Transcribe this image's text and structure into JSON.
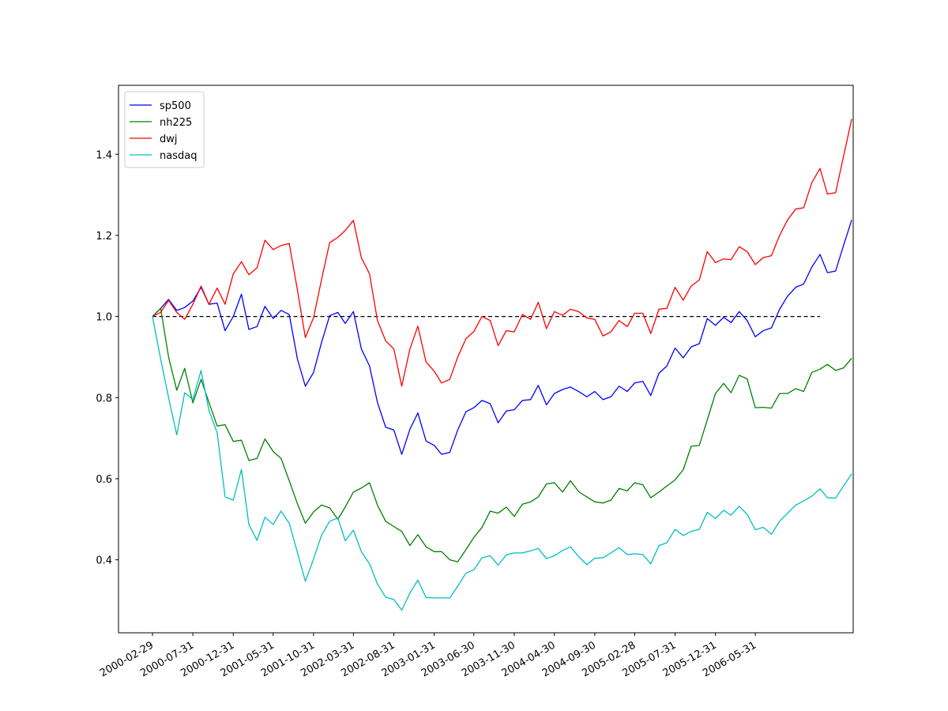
{
  "chart_data": {
    "type": "line",
    "title": "",
    "xlabel": "",
    "ylabel": "",
    "x_ticks": [
      "2000-02-29",
      "2000-07-31",
      "2000-12-31",
      "2001-05-31",
      "2001-10-31",
      "2002-03-31",
      "2002-08-31",
      "2003-01-31",
      "2003-06-30",
      "2003-11-30",
      "2004-04-30",
      "2004-09-30",
      "2005-02-28",
      "2005-07-31",
      "2005-12-31",
      "2006-05-31"
    ],
    "x_start": "2000-02-29",
    "x_end": "2007-01-31",
    "x_frequency": "monthly",
    "ylim": [
      0.22,
      1.57
    ],
    "y_ticks": [
      0.4,
      0.6,
      0.8,
      1.0,
      1.2,
      1.4
    ],
    "y_tick_labels": [
      "0.4",
      "0.6",
      "0.8",
      "1.0",
      "1.2",
      "1.4"
    ],
    "grid": false,
    "legend_position": "top-left",
    "reference_line": {
      "y": 1.0,
      "style": "dashed",
      "color": "#000000"
    },
    "series": [
      {
        "name": "sp500",
        "color": "#0000ff",
        "values": [
          1.0,
          1.02,
          1.042,
          1.015,
          1.022,
          1.038,
          1.072,
          1.03,
          1.033,
          0.965,
          1.0,
          1.055,
          0.968,
          0.975,
          1.025,
          0.995,
          1.015,
          1.005,
          0.895,
          0.828,
          0.862,
          0.935,
          1.002,
          1.01,
          0.983,
          1.012,
          0.92,
          0.878,
          0.788,
          0.727,
          0.72,
          0.66,
          0.722,
          0.762,
          0.693,
          0.682,
          0.66,
          0.665,
          0.72,
          0.765,
          0.775,
          0.793,
          0.785,
          0.738,
          0.767,
          0.77,
          0.793,
          0.795,
          0.83,
          0.782,
          0.81,
          0.82,
          0.826,
          0.815,
          0.802,
          0.815,
          0.795,
          0.802,
          0.828,
          0.815,
          0.836,
          0.84,
          0.805,
          0.86,
          0.878,
          0.922,
          0.898,
          0.925,
          0.933,
          0.995,
          0.978,
          0.998,
          0.985,
          1.012,
          0.99,
          0.95,
          0.965,
          0.972,
          1.018,
          1.05,
          1.072,
          1.08,
          1.122,
          1.153,
          1.108,
          1.112,
          1.175,
          1.238
        ]
      },
      {
        "name": "nh225",
        "color": "#008000",
        "values": [
          1.0,
          1.02,
          0.9,
          0.818,
          0.872,
          0.787,
          0.845,
          0.788,
          0.73,
          0.733,
          0.692,
          0.695,
          0.645,
          0.65,
          0.698,
          0.667,
          0.65,
          0.595,
          0.538,
          0.49,
          0.518,
          0.535,
          0.528,
          0.5,
          0.53,
          0.567,
          0.577,
          0.59,
          0.535,
          0.495,
          0.482,
          0.47,
          0.435,
          0.462,
          0.432,
          0.42,
          0.42,
          0.4,
          0.395,
          0.425,
          0.455,
          0.48,
          0.52,
          0.515,
          0.53,
          0.507,
          0.537,
          0.543,
          0.555,
          0.587,
          0.59,
          0.567,
          0.595,
          0.568,
          0.555,
          0.543,
          0.54,
          0.547,
          0.576,
          0.57,
          0.59,
          0.585,
          0.553,
          0.567,
          0.582,
          0.597,
          0.622,
          0.68,
          0.682,
          0.745,
          0.81,
          0.835,
          0.812,
          0.855,
          0.846,
          0.775,
          0.776,
          0.774,
          0.81,
          0.81,
          0.822,
          0.815,
          0.862,
          0.87,
          0.882,
          0.867,
          0.873,
          0.897
        ]
      },
      {
        "name": "dwj",
        "color": "#ff0000",
        "values": [
          1.0,
          1.01,
          1.04,
          1.01,
          0.993,
          1.03,
          1.075,
          1.03,
          1.07,
          1.03,
          1.105,
          1.135,
          1.103,
          1.12,
          1.188,
          1.165,
          1.175,
          1.18,
          1.065,
          0.948,
          0.997,
          1.09,
          1.182,
          1.195,
          1.212,
          1.237,
          1.145,
          1.105,
          0.99,
          0.94,
          0.92,
          0.828,
          0.92,
          0.976,
          0.888,
          0.865,
          0.836,
          0.845,
          0.9,
          0.945,
          0.963,
          1.0,
          0.99,
          0.928,
          0.965,
          0.962,
          1.005,
          0.993,
          1.035,
          0.97,
          1.012,
          1.003,
          1.018,
          1.012,
          0.996,
          0.993,
          0.952,
          0.962,
          0.99,
          0.975,
          1.008,
          1.008,
          0.958,
          1.018,
          1.02,
          1.072,
          1.04,
          1.075,
          1.09,
          1.16,
          1.133,
          1.142,
          1.14,
          1.172,
          1.16,
          1.128,
          1.145,
          1.15,
          1.2,
          1.238,
          1.265,
          1.268,
          1.33,
          1.365,
          1.302,
          1.305,
          1.395,
          1.487
        ]
      },
      {
        "name": "nasdaq",
        "color": "#00bfbf",
        "values": [
          1.0,
          0.895,
          0.8,
          0.708,
          0.812,
          0.795,
          0.867,
          0.768,
          0.713,
          0.555,
          0.547,
          0.623,
          0.487,
          0.448,
          0.505,
          0.487,
          0.52,
          0.49,
          0.418,
          0.347,
          0.402,
          0.46,
          0.495,
          0.503,
          0.447,
          0.473,
          0.42,
          0.39,
          0.34,
          0.308,
          0.302,
          0.276,
          0.318,
          0.35,
          0.307,
          0.306,
          0.306,
          0.306,
          0.335,
          0.367,
          0.375,
          0.405,
          0.41,
          0.387,
          0.412,
          0.417,
          0.417,
          0.422,
          0.428,
          0.403,
          0.41,
          0.423,
          0.432,
          0.408,
          0.388,
          0.404,
          0.405,
          0.417,
          0.43,
          0.413,
          0.415,
          0.413,
          0.39,
          0.435,
          0.442,
          0.475,
          0.46,
          0.47,
          0.475,
          0.517,
          0.502,
          0.522,
          0.51,
          0.532,
          0.512,
          0.474,
          0.48,
          0.463,
          0.495,
          0.515,
          0.535,
          0.545,
          0.557,
          0.575,
          0.553,
          0.552,
          0.582,
          0.612
        ]
      }
    ]
  }
}
